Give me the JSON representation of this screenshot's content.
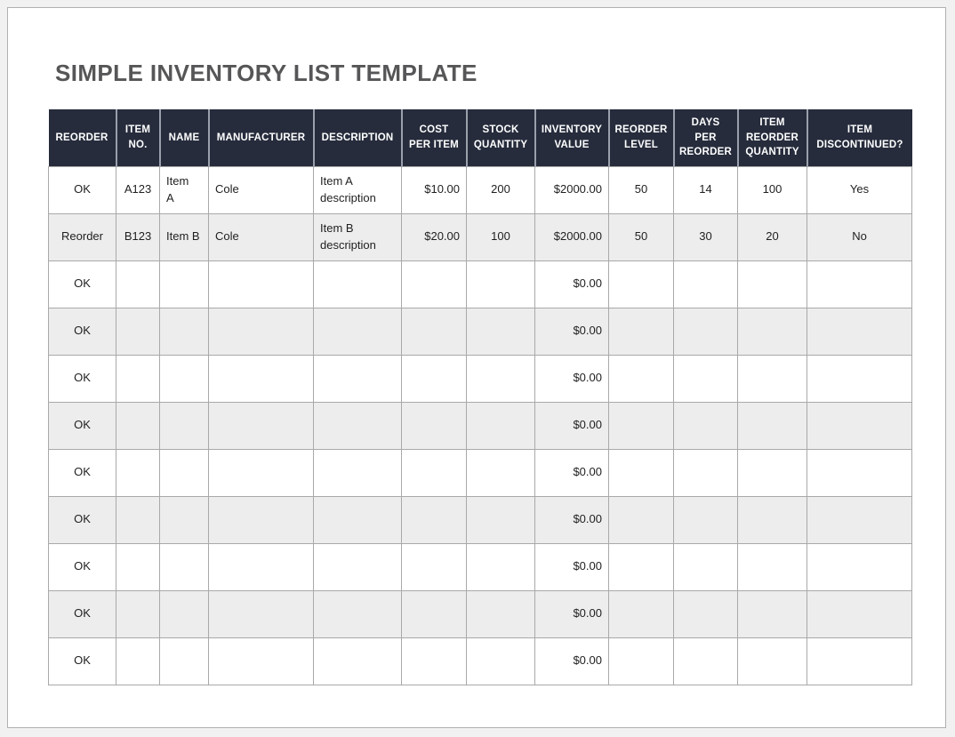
{
  "document": {
    "title": "SIMPLE INVENTORY LIST TEMPLATE"
  },
  "colors": {
    "canvas_bg": "#f1f1f1",
    "page_bg": "#ffffff",
    "page_border": "#b0b0b0",
    "header_bg": "#262c3c",
    "header_text": "#ffffff",
    "header_sep": "#9aa0ab",
    "grid_line": "#a9a9a9",
    "alt_row_bg": "#ededed",
    "body_text": "#1f1f1f",
    "title_text": "#565658"
  },
  "table": {
    "columns": [
      "REORDER",
      "ITEM\nNO.",
      "NAME",
      "MANUFACTURER",
      "DESCRIPTION",
      "COST\nPER ITEM",
      "STOCK\nQUANTITY",
      "INVENTORY\nVALUE",
      "REORDER\nLEVEL",
      "DAYS\nPER\nREORDER",
      "ITEM\nREORDER\nQUANTITY",
      "ITEM\nDISCONTINUED?"
    ],
    "rows": [
      [
        "OK",
        "A123",
        "Item\nA",
        "Cole",
        "Item A description",
        "$10.00",
        "200",
        "$2000.00",
        "50",
        "14",
        "100",
        "Yes"
      ],
      [
        "Reorder",
        "B123",
        "Item B",
        "Cole",
        "Item B description",
        "$20.00",
        "100",
        "$2000.00",
        "50",
        "30",
        "20",
        "No"
      ],
      [
        "OK",
        "",
        "",
        "",
        "",
        "",
        "",
        "$0.00",
        "",
        "",
        "",
        ""
      ],
      [
        "OK",
        "",
        "",
        "",
        "",
        "",
        "",
        "$0.00",
        "",
        "",
        "",
        ""
      ],
      [
        "OK",
        "",
        "",
        "",
        "",
        "",
        "",
        "$0.00",
        "",
        "",
        "",
        ""
      ],
      [
        "OK",
        "",
        "",
        "",
        "",
        "",
        "",
        "$0.00",
        "",
        "",
        "",
        ""
      ],
      [
        "OK",
        "",
        "",
        "",
        "",
        "",
        "",
        "$0.00",
        "",
        "",
        "",
        ""
      ],
      [
        "OK",
        "",
        "",
        "",
        "",
        "",
        "",
        "$0.00",
        "",
        "",
        "",
        ""
      ],
      [
        "OK",
        "",
        "",
        "",
        "",
        "",
        "",
        "$0.00",
        "",
        "",
        "",
        ""
      ],
      [
        "OK",
        "",
        "",
        "",
        "",
        "",
        "",
        "$0.00",
        "",
        "",
        "",
        ""
      ],
      [
        "OK",
        "",
        "",
        "",
        "",
        "",
        "",
        "$0.00",
        "",
        "",
        "",
        ""
      ]
    ]
  }
}
